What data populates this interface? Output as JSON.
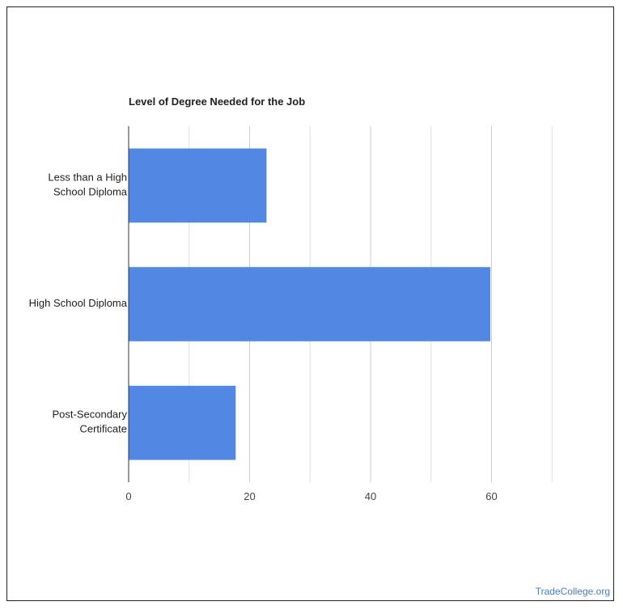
{
  "chart_data": {
    "type": "bar",
    "orientation": "horizontal",
    "title": "Level of Degree Needed for the Job",
    "categories": [
      "Less than a High School Diploma",
      "High School Diploma",
      "Post-Secondary Certificate"
    ],
    "category_lines": [
      [
        "Less than a High",
        "School Diploma"
      ],
      [
        "High School Diploma"
      ],
      [
        "Post-Secondary",
        "Certificate"
      ]
    ],
    "values": [
      22.8,
      59.8,
      17.7
    ],
    "xlim": [
      0,
      70
    ],
    "xticks": [
      0,
      20,
      40,
      60
    ],
    "xlabel": "",
    "ylabel": "",
    "grid": true,
    "bar_color": "#5387e4",
    "grid_color": "#e0e0e0",
    "major_grid_color": "#cccccc"
  },
  "watermark": "TradeCollege.org"
}
